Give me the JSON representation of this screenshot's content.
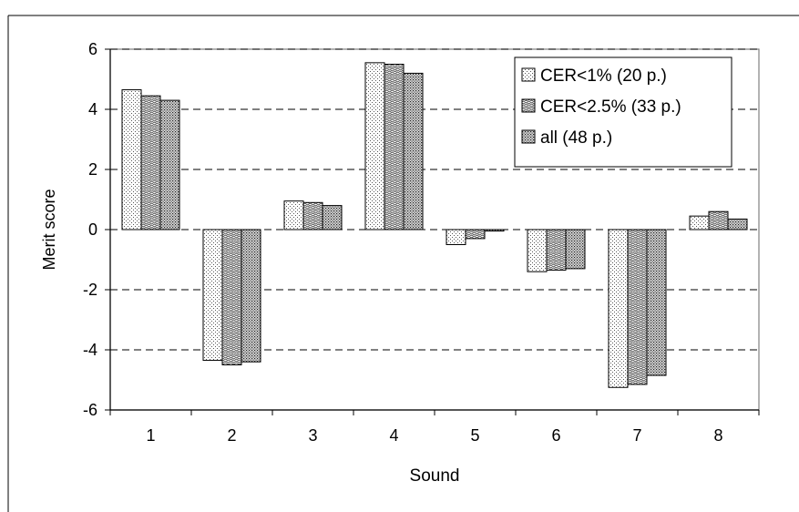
{
  "chart_data": {
    "type": "bar",
    "title": "",
    "xlabel": "Sound",
    "ylabel": "Merit score",
    "categories": [
      "1",
      "2",
      "3",
      "4",
      "5",
      "6",
      "7",
      "8"
    ],
    "ylim": [
      -6,
      6
    ],
    "yticks": [
      "-6",
      "-4",
      "-2",
      "0",
      "2",
      "4",
      "6"
    ],
    "grid": true,
    "legend_position": "top-right",
    "series": [
      {
        "name": "CER<1% (20 p.)",
        "pattern": "fine-dots",
        "values": [
          4.65,
          -4.35,
          0.95,
          5.55,
          -0.5,
          -1.4,
          -5.25,
          0.45
        ]
      },
      {
        "name": "CER<2.5% (33 p.)",
        "pattern": "wavy-lines",
        "values": [
          4.45,
          -4.5,
          0.9,
          5.5,
          -0.3,
          -1.35,
          -5.15,
          0.6
        ]
      },
      {
        "name": "all (48 p.)",
        "pattern": "dense-dots",
        "values": [
          4.3,
          -4.4,
          0.8,
          5.2,
          -0.05,
          -1.3,
          -4.85,
          0.35
        ]
      }
    ]
  }
}
